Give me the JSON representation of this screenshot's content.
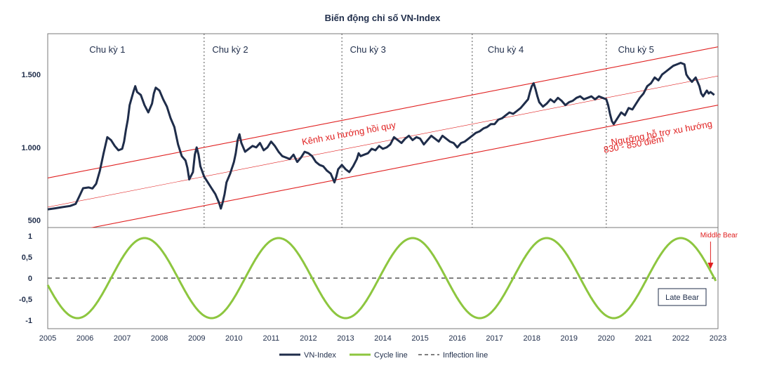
{
  "chart_data": {
    "type": "line",
    "title": "Biến động chỉ số VN-Index",
    "x_ticks": [
      "2005",
      "2006",
      "2007",
      "2008",
      "2009",
      "2010",
      "2011",
      "2012",
      "2013",
      "2014",
      "2015",
      "2016",
      "2017",
      "2018",
      "2019",
      "2020",
      "2021",
      "2022",
      "2023"
    ],
    "xlim": [
      2005,
      2023
    ],
    "top_panel": {
      "ylim": [
        450,
        1780
      ],
      "y_ticks": [
        {
          "value": 500,
          "label": "500"
        },
        {
          "value": 1000,
          "label": "1.000"
        },
        {
          "value": 1500,
          "label": "1.500"
        }
      ],
      "cycle_labels": [
        {
          "label": "Chu kỳ 1",
          "x": 2006.6
        },
        {
          "label": "Chu kỳ 2",
          "x": 2009.9
        },
        {
          "label": "Chu kỳ 3",
          "x": 2013.6
        },
        {
          "label": "Chu kỳ 4",
          "x": 2017.3
        },
        {
          "label": "Chu kỳ 5",
          "x": 2020.8
        }
      ],
      "cycle_dividers": [
        2009.2,
        2012.9,
        2016.4,
        2020.0
      ],
      "channel": {
        "upper": {
          "x0": 2005,
          "y0": 790,
          "x1": 2023,
          "y1": 1690
        },
        "middle": {
          "x0": 2005,
          "y0": 590,
          "x1": 2023,
          "y1": 1490
        },
        "lower": {
          "x0": 2005,
          "y0": 390,
          "x1": 2023,
          "y1": 1290
        }
      },
      "annotations": {
        "channel_label": "Kênh xu hướng hồi quy",
        "support_line1": "Ngưỡng hỗ trợ xu hướng",
        "support_line2": "830 - 850 điểm"
      },
      "series": [
        {
          "name": "VN-Index",
          "color": "#1f2d4a",
          "points": [
            [
              2005.0,
              575
            ],
            [
              2005.2,
              582
            ],
            [
              2005.4,
              590
            ],
            [
              2005.6,
              598
            ],
            [
              2005.75,
              612
            ],
            [
              2005.85,
              665
            ],
            [
              2005.95,
              720
            ],
            [
              2006.1,
              725
            ],
            [
              2006.2,
              718
            ],
            [
              2006.3,
              750
            ],
            [
              2006.4,
              840
            ],
            [
              2006.5,
              960
            ],
            [
              2006.6,
              1070
            ],
            [
              2006.7,
              1050
            ],
            [
              2006.8,
              1010
            ],
            [
              2006.9,
              980
            ],
            [
              2007.0,
              990
            ],
            [
              2007.05,
              1040
            ],
            [
              2007.1,
              1120
            ],
            [
              2007.15,
              1190
            ],
            [
              2007.2,
              1290
            ],
            [
              2007.3,
              1380
            ],
            [
              2007.35,
              1420
            ],
            [
              2007.4,
              1380
            ],
            [
              2007.5,
              1360
            ],
            [
              2007.6,
              1290
            ],
            [
              2007.7,
              1240
            ],
            [
              2007.8,
              1300
            ],
            [
              2007.85,
              1370
            ],
            [
              2007.9,
              1410
            ],
            [
              2008.0,
              1390
            ],
            [
              2008.1,
              1330
            ],
            [
              2008.2,
              1280
            ],
            [
              2008.3,
              1200
            ],
            [
              2008.4,
              1140
            ],
            [
              2008.5,
              1020
            ],
            [
              2008.6,
              940
            ],
            [
              2008.7,
              910
            ],
            [
              2008.75,
              860
            ],
            [
              2008.8,
              780
            ],
            [
              2008.9,
              830
            ],
            [
              2008.95,
              950
            ],
            [
              2009.0,
              1000
            ],
            [
              2009.05,
              950
            ],
            [
              2009.1,
              870
            ],
            [
              2009.2,
              800
            ],
            [
              2009.3,
              760
            ],
            [
              2009.4,
              720
            ],
            [
              2009.5,
              680
            ],
            [
              2009.6,
              620
            ],
            [
              2009.65,
              580
            ],
            [
              2009.7,
              625
            ],
            [
              2009.75,
              680
            ],
            [
              2009.8,
              760
            ],
            [
              2009.9,
              820
            ],
            [
              2010.0,
              900
            ],
            [
              2010.05,
              960
            ],
            [
              2010.1,
              1050
            ],
            [
              2010.15,
              1090
            ],
            [
              2010.2,
              1030
            ],
            [
              2010.3,
              970
            ],
            [
              2010.4,
              990
            ],
            [
              2010.5,
              1010
            ],
            [
              2010.6,
              1000
            ],
            [
              2010.7,
              1030
            ],
            [
              2010.8,
              980
            ],
            [
              2010.9,
              1000
            ],
            [
              2011.0,
              1040
            ],
            [
              2011.1,
              1010
            ],
            [
              2011.2,
              970
            ],
            [
              2011.3,
              940
            ],
            [
              2011.4,
              930
            ],
            [
              2011.5,
              920
            ],
            [
              2011.6,
              950
            ],
            [
              2011.7,
              900
            ],
            [
              2011.8,
              930
            ],
            [
              2011.9,
              970
            ],
            [
              2012.0,
              960
            ],
            [
              2012.1,
              940
            ],
            [
              2012.2,
              900
            ],
            [
              2012.3,
              880
            ],
            [
              2012.4,
              870
            ],
            [
              2012.5,
              840
            ],
            [
              2012.6,
              820
            ],
            [
              2012.65,
              790
            ],
            [
              2012.7,
              760
            ],
            [
              2012.75,
              800
            ],
            [
              2012.8,
              850
            ],
            [
              2012.9,
              880
            ],
            [
              2013.0,
              850
            ],
            [
              2013.1,
              830
            ],
            [
              2013.2,
              870
            ],
            [
              2013.3,
              920
            ],
            [
              2013.35,
              960
            ],
            [
              2013.4,
              940
            ],
            [
              2013.5,
              950
            ],
            [
              2013.6,
              960
            ],
            [
              2013.7,
              990
            ],
            [
              2013.8,
              980
            ],
            [
              2013.9,
              1010
            ],
            [
              2014.0,
              990
            ],
            [
              2014.1,
              1000
            ],
            [
              2014.2,
              1020
            ],
            [
              2014.3,
              1070
            ],
            [
              2014.4,
              1050
            ],
            [
              2014.5,
              1030
            ],
            [
              2014.6,
              1060
            ],
            [
              2014.7,
              1080
            ],
            [
              2014.8,
              1050
            ],
            [
              2014.9,
              1070
            ],
            [
              2015.0,
              1060
            ],
            [
              2015.1,
              1020
            ],
            [
              2015.2,
              1050
            ],
            [
              2015.3,
              1080
            ],
            [
              2015.4,
              1060
            ],
            [
              2015.5,
              1040
            ],
            [
              2015.6,
              1080
            ],
            [
              2015.7,
              1060
            ],
            [
              2015.8,
              1040
            ],
            [
              2015.9,
              1030
            ],
            [
              2016.0,
              1000
            ],
            [
              2016.1,
              1030
            ],
            [
              2016.2,
              1040
            ],
            [
              2016.3,
              1060
            ],
            [
              2016.4,
              1080
            ],
            [
              2016.5,
              1100
            ],
            [
              2016.6,
              1110
            ],
            [
              2016.7,
              1130
            ],
            [
              2016.8,
              1140
            ],
            [
              2016.9,
              1160
            ],
            [
              2017.0,
              1160
            ],
            [
              2017.1,
              1190
            ],
            [
              2017.2,
              1200
            ],
            [
              2017.3,
              1220
            ],
            [
              2017.4,
              1240
            ],
            [
              2017.5,
              1230
            ],
            [
              2017.6,
              1250
            ],
            [
              2017.7,
              1270
            ],
            [
              2017.8,
              1300
            ],
            [
              2017.9,
              1330
            ],
            [
              2017.95,
              1380
            ],
            [
              2018.0,
              1420
            ],
            [
              2018.05,
              1440
            ],
            [
              2018.1,
              1400
            ],
            [
              2018.15,
              1350
            ],
            [
              2018.2,
              1310
            ],
            [
              2018.3,
              1280
            ],
            [
              2018.4,
              1300
            ],
            [
              2018.5,
              1330
            ],
            [
              2018.6,
              1310
            ],
            [
              2018.7,
              1340
            ],
            [
              2018.8,
              1320
            ],
            [
              2018.9,
              1290
            ],
            [
              2019.0,
              1310
            ],
            [
              2019.1,
              1320
            ],
            [
              2019.2,
              1340
            ],
            [
              2019.3,
              1350
            ],
            [
              2019.4,
              1330
            ],
            [
              2019.5,
              1340
            ],
            [
              2019.6,
              1350
            ],
            [
              2019.7,
              1330
            ],
            [
              2019.8,
              1350
            ],
            [
              2019.9,
              1340
            ],
            [
              2020.0,
              1330
            ],
            [
              2020.05,
              1290
            ],
            [
              2020.1,
              1230
            ],
            [
              2020.15,
              1180
            ],
            [
              2020.2,
              1160
            ],
            [
              2020.3,
              1200
            ],
            [
              2020.4,
              1240
            ],
            [
              2020.5,
              1220
            ],
            [
              2020.6,
              1270
            ],
            [
              2020.7,
              1260
            ],
            [
              2020.8,
              1300
            ],
            [
              2020.9,
              1340
            ],
            [
              2021.0,
              1370
            ],
            [
              2021.1,
              1420
            ],
            [
              2021.2,
              1440
            ],
            [
              2021.3,
              1480
            ],
            [
              2021.4,
              1460
            ],
            [
              2021.5,
              1500
            ],
            [
              2021.6,
              1520
            ],
            [
              2021.7,
              1540
            ],
            [
              2021.8,
              1560
            ],
            [
              2021.9,
              1570
            ],
            [
              2022.0,
              1580
            ],
            [
              2022.1,
              1570
            ],
            [
              2022.15,
              1500
            ],
            [
              2022.2,
              1480
            ],
            [
              2022.3,
              1450
            ],
            [
              2022.4,
              1480
            ],
            [
              2022.5,
              1420
            ],
            [
              2022.55,
              1370
            ],
            [
              2022.6,
              1350
            ],
            [
              2022.7,
              1390
            ],
            [
              2022.75,
              1370
            ],
            [
              2022.8,
              1380
            ],
            [
              2022.9,
              1360
            ]
          ]
        }
      ]
    },
    "bottom_panel": {
      "ylim": [
        -1.2,
        1.2
      ],
      "y_ticks": [
        {
          "value": 1,
          "label": "1"
        },
        {
          "value": 0.5,
          "label": "0,5"
        },
        {
          "value": 0,
          "label": "0"
        },
        {
          "value": -0.5,
          "label": "-0,5"
        },
        {
          "value": -1,
          "label": "-1"
        }
      ],
      "cycle_line": {
        "name": "Cycle line",
        "color": "#8dc63f",
        "period_years": 3.6,
        "peak_at": 2007.6,
        "amplitude": 0.95,
        "x_start": 2005.0,
        "x_end": 2022.95
      },
      "inflection_line": {
        "name": "Inflection line",
        "value": 0
      },
      "annotations": {
        "middle_bear": "Middle Bear",
        "middle_bear_x": 2022.8,
        "late_bear": "Late Bear"
      }
    },
    "legend": {
      "placement": "bottom-center",
      "items": [
        {
          "label": "VN-Index",
          "style": "solid",
          "color": "#1f2d4a"
        },
        {
          "label": "Cycle line",
          "style": "solid",
          "color": "#8dc63f"
        },
        {
          "label": "Inflection line",
          "style": "dashed",
          "color": "#555555"
        }
      ]
    }
  }
}
